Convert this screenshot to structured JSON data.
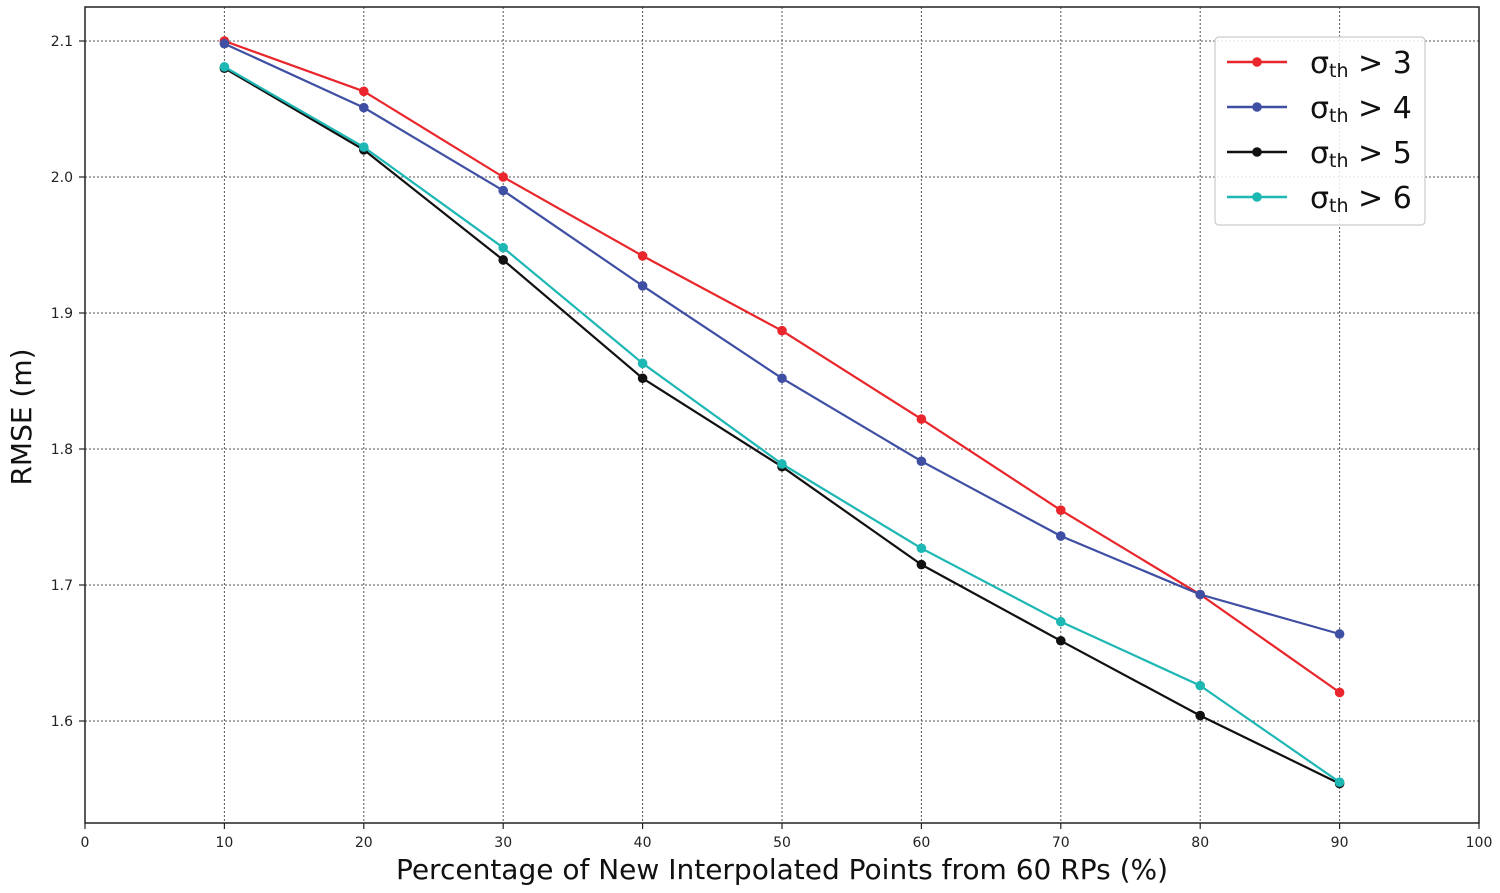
{
  "chart_data": {
    "type": "line",
    "xlabel": "Percentage of New Interpolated Points from 60 RPs (%)",
    "ylabel": "RMSE (m)",
    "xlim": [
      0,
      100
    ],
    "ylim": [
      1.525,
      2.125
    ],
    "xticks": [
      0,
      10,
      20,
      30,
      40,
      50,
      60,
      70,
      80,
      90,
      100
    ],
    "yticks": [
      1.6,
      1.7,
      1.8,
      1.9,
      2.0,
      2.1
    ],
    "grid": true,
    "legend_position": "top-right",
    "x": [
      10,
      20,
      30,
      40,
      50,
      60,
      70,
      80,
      90
    ],
    "series": [
      {
        "name": "σth > 3",
        "symbol": "σ",
        "subscript": "th",
        "suffix": " > 3",
        "color": "#e8262b",
        "values": [
          2.1,
          2.063,
          2.0,
          1.942,
          1.887,
          1.822,
          1.755,
          1.693,
          1.621
        ]
      },
      {
        "name": "σth > 4",
        "symbol": "σ",
        "subscript": "th",
        "suffix": " > 4",
        "color": "#3f4fa3",
        "values": [
          2.098,
          2.051,
          1.99,
          1.92,
          1.852,
          1.791,
          1.736,
          1.693,
          1.664
        ]
      },
      {
        "name": "σth > 5",
        "symbol": "σ",
        "subscript": "th",
        "suffix": " > 5",
        "color": "#111111",
        "values": [
          2.08,
          2.02,
          1.939,
          1.852,
          1.787,
          1.715,
          1.659,
          1.604,
          1.554
        ]
      },
      {
        "name": "σth > 6",
        "symbol": "σ",
        "subscript": "th",
        "suffix": " > 6",
        "color": "#1db7b4",
        "values": [
          2.081,
          2.022,
          1.948,
          1.863,
          1.789,
          1.727,
          1.673,
          1.626,
          1.555
        ]
      }
    ]
  }
}
